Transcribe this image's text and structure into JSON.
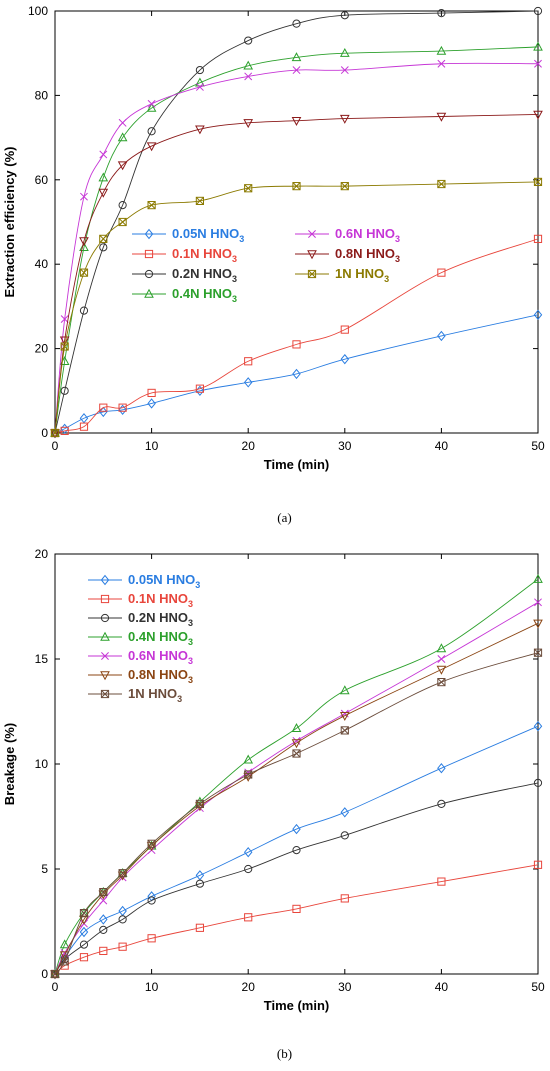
{
  "chart_data": [
    {
      "type": "line",
      "caption": "(a)",
      "xlabel": "Time (min)",
      "ylabel": "Extraction efficiency (%)",
      "xlim": [
        0,
        50
      ],
      "ylim": [
        0,
        100
      ],
      "xticks": [
        0,
        10,
        20,
        30,
        40,
        50
      ],
      "yticks": [
        0,
        20,
        40,
        60,
        80,
        100
      ],
      "grid": false,
      "legend": {
        "placement": "center",
        "columns": 2
      },
      "x": [
        0,
        1,
        3,
        5,
        7,
        10,
        15,
        20,
        25,
        30,
        40,
        50
      ],
      "series": [
        {
          "name": "0.05N HNO",
          "sub": "3",
          "color": "#2a7de1",
          "marker": "diamond",
          "values": [
            0,
            1,
            3.5,
            5,
            5.5,
            7,
            10,
            12,
            14,
            17.5,
            23,
            28
          ]
        },
        {
          "name": "0.1N HNO",
          "sub": "3",
          "color": "#e8463c",
          "marker": "square",
          "values": [
            0,
            0.5,
            1.5,
            6,
            6,
            9.5,
            10.5,
            17,
            21,
            24.5,
            38,
            46
          ]
        },
        {
          "name": "0.2N HNO",
          "sub": "3",
          "color": "#333333",
          "marker": "circle",
          "values": [
            0,
            10,
            29,
            44,
            54,
            71.5,
            86,
            93,
            97,
            99,
            99.5,
            100
          ]
        },
        {
          "name": "0.4N HNO",
          "sub": "3",
          "color": "#2ca02c",
          "marker": "triangle-up",
          "values": [
            0,
            17,
            44,
            60.5,
            70,
            77,
            83,
            87,
            89,
            90,
            90.5,
            91.5
          ]
        },
        {
          "name": "0.6N HNO",
          "sub": "3",
          "color": "#c636d6",
          "marker": "x",
          "values": [
            0,
            27,
            56,
            66,
            73.5,
            78,
            82,
            84.5,
            86,
            86,
            87.5,
            87.5
          ]
        },
        {
          "name": "0.8N HNO",
          "sub": "3",
          "color": "#8b1a1a",
          "marker": "triangle-down",
          "values": [
            0,
            22,
            45.5,
            57,
            63.5,
            68,
            72,
            73.5,
            74,
            74.5,
            75,
            75.5
          ]
        },
        {
          "name": "1N HNO",
          "sub": "3",
          "color": "#8b7a00",
          "marker": "square-x",
          "values": [
            0,
            20.5,
            38,
            46,
            50,
            54,
            55,
            58,
            58.5,
            58.5,
            59,
            59.5
          ]
        }
      ]
    },
    {
      "type": "line",
      "caption": "(b)",
      "xlabel": "Time (min)",
      "ylabel": "Breakage (%)",
      "xlim": [
        0,
        50
      ],
      "ylim": [
        0,
        20
      ],
      "xticks": [
        0,
        10,
        20,
        30,
        40,
        50
      ],
      "yticks": [
        0,
        5,
        10,
        15,
        20
      ],
      "grid": false,
      "legend": {
        "placement": "top-left",
        "columns": 1
      },
      "x": [
        0,
        1,
        3,
        5,
        7,
        10,
        15,
        20,
        25,
        30,
        40,
        50
      ],
      "series": [
        {
          "name": "0.05N HNO",
          "sub": "3",
          "color": "#2a7de1",
          "marker": "diamond",
          "values": [
            0,
            0.8,
            2,
            2.6,
            3,
            3.7,
            4.7,
            5.8,
            6.9,
            7.7,
            9.8,
            11.8
          ]
        },
        {
          "name": "0.1N HNO",
          "sub": "3",
          "color": "#e8463c",
          "marker": "square",
          "values": [
            0,
            0.4,
            0.8,
            1.1,
            1.3,
            1.7,
            2.2,
            2.7,
            3.1,
            3.6,
            4.4,
            5.2
          ]
        },
        {
          "name": "0.2N HNO",
          "sub": "3",
          "color": "#333333",
          "marker": "circle",
          "values": [
            0,
            0.7,
            1.4,
            2.1,
            2.6,
            3.5,
            4.3,
            5,
            5.9,
            6.6,
            8.1,
            9.1
          ]
        },
        {
          "name": "0.4N HNO",
          "sub": "3",
          "color": "#2ca02c",
          "marker": "triangle-up",
          "values": [
            0,
            1.4,
            2.9,
            3.9,
            4.8,
            6.1,
            8.2,
            10.2,
            11.7,
            13.5,
            15.5,
            18.8
          ]
        },
        {
          "name": "0.6N HNO",
          "sub": "3",
          "color": "#c636d6",
          "marker": "x",
          "values": [
            0,
            1,
            2.4,
            3.5,
            4.6,
            5.9,
            7.9,
            9.6,
            11.1,
            12.4,
            15,
            17.7
          ]
        },
        {
          "name": "0.8N HNO",
          "sub": "3",
          "color": "#8b4513",
          "marker": "triangle-down",
          "values": [
            0,
            0.9,
            2.6,
            3.8,
            4.7,
            6.1,
            8,
            9.4,
            11,
            12.3,
            14.5,
            16.7
          ]
        },
        {
          "name": "1N HNO",
          "sub": "3",
          "color": "#6b4c3b",
          "marker": "square-x",
          "values": [
            0,
            0.6,
            2.9,
            3.9,
            4.8,
            6.2,
            8.1,
            9.5,
            10.5,
            11.6,
            13.9,
            15.3
          ]
        }
      ]
    }
  ]
}
